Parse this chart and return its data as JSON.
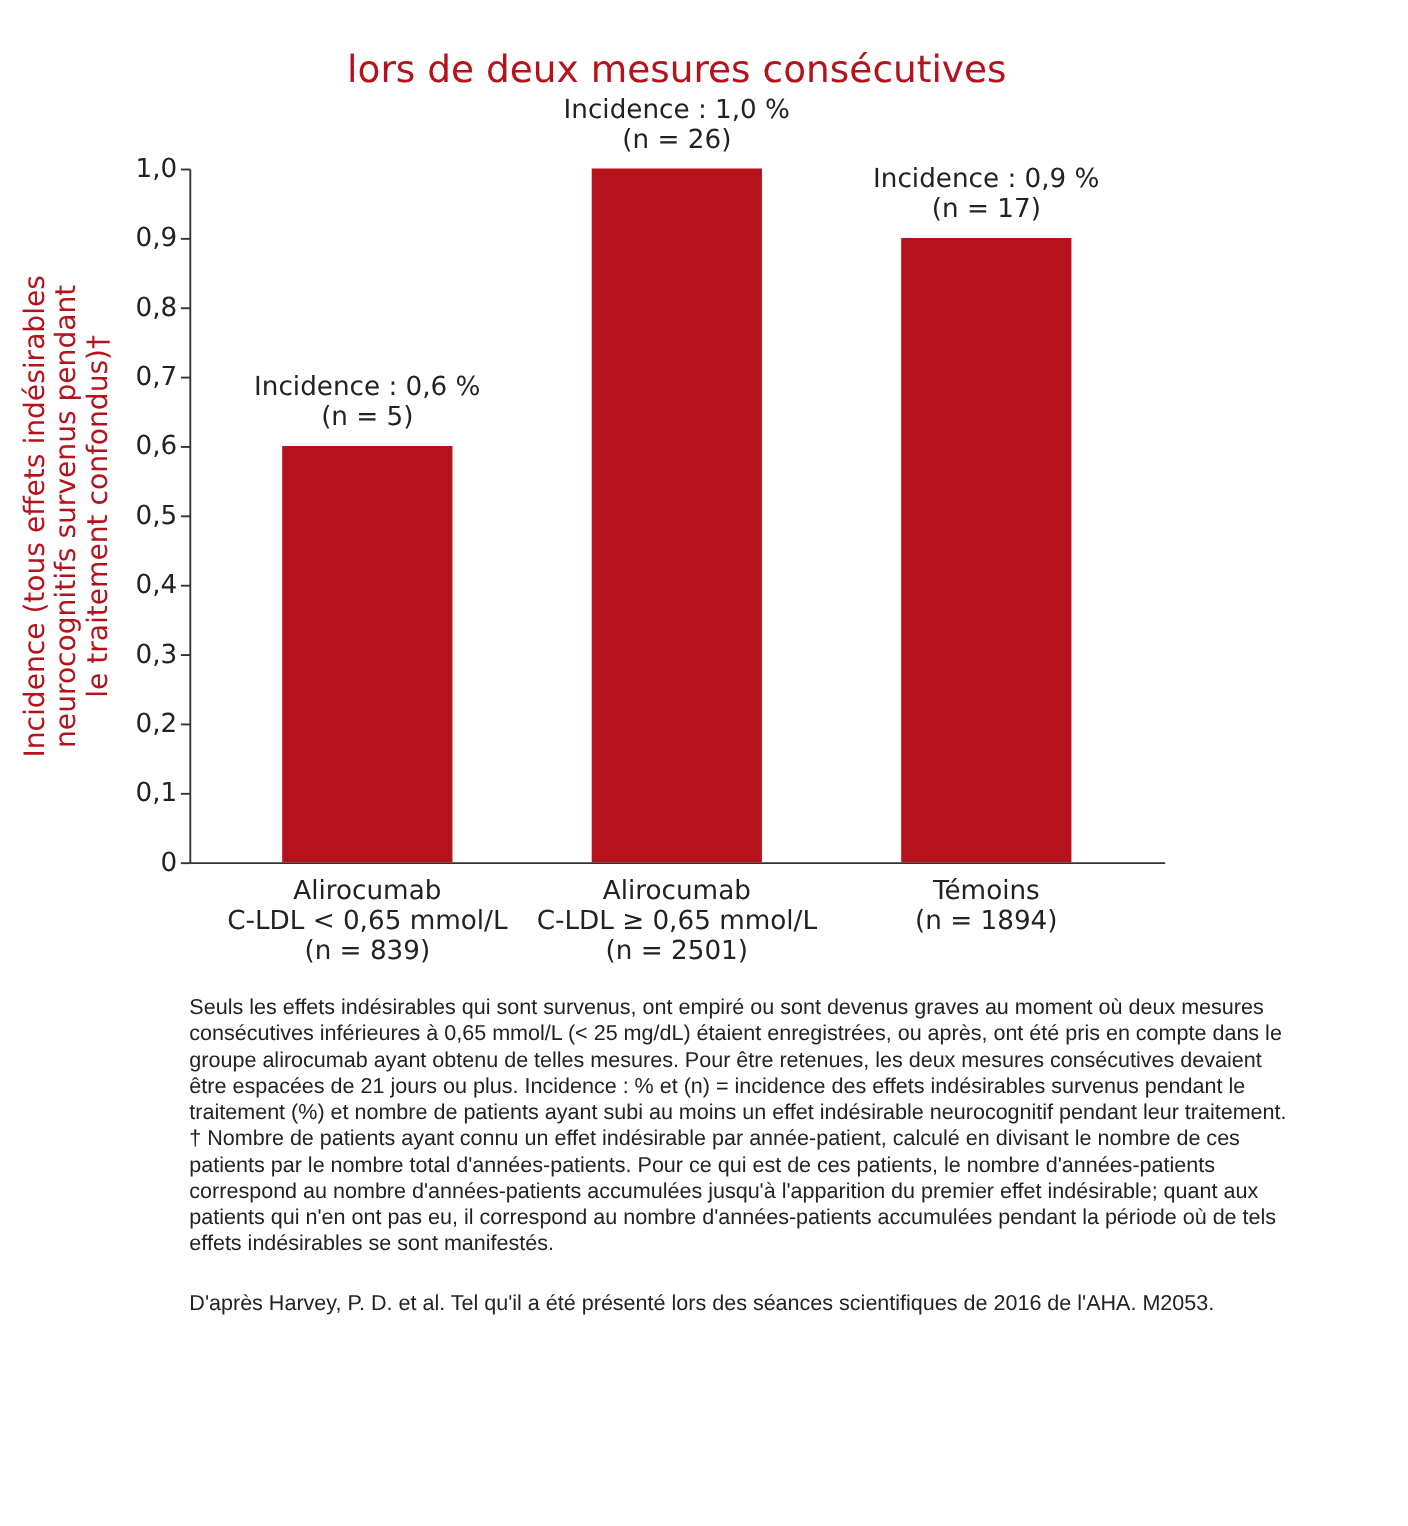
{
  "chart_data": {
    "type": "bar",
    "title": "lors de deux mesures consécutives",
    "ylabel": "Incidence (tous effets indésirables\nneurocognitifs survenus pendant\nle traitement confondus)†",
    "categories": [
      "Alirocumab\nC-LDL < 0,65 mmol/L\n(n = 839)",
      "Alirocumab\nC-LDL ≥ 0,65 mmol/L\n(n = 2501)",
      "Témoins\n(n = 1894)"
    ],
    "values": [
      0.6,
      1.0,
      0.9
    ],
    "color": "#b5121b",
    "value_labels": [
      "Incidence : 0,6 %\n(n = 5)",
      "Incidence : 1,0 %\n(n = 26)",
      "Incidence : 0,9 %\n(n = 17)"
    ],
    "ylim": [
      0,
      1.0
    ],
    "yticks": [
      0,
      {
        "value": 0.1,
        "label": "0,1"
      },
      {
        "value": 0.2,
        "label": "0,2"
      },
      {
        "value": 0.3,
        "label": "0,3"
      },
      {
        "value": 0.4,
        "label": "0,4"
      },
      {
        "value": 0.5,
        "label": "0,5"
      },
      {
        "value": 0.6,
        "label": "0,6"
      },
      {
        "value": 0.7,
        "label": "0,7"
      },
      {
        "value": 0.8,
        "label": "0,8"
      },
      {
        "value": 0.9,
        "label": "0,9"
      },
      {
        "value": 1.0,
        "label": "1,0"
      }
    ],
    "grid": false,
    "annotations": [
      "Seuls les effets indésirables qui sont survenus, ont empiré ou sont devenus graves au moment où deux mesures\nconsécutives inférieures à 0,65 mmol/L (< 25 mg/dL) étaient enregistrées, ou après, ont été pris en compte dans le\ngroupe alirocumab ayant obtenu de telles mesures. Pour être retenues, les deux mesures consécutives devaient\nêtre espacées de 21 jours ou plus. Incidence : % et (n) = incidence des effets indésirables survenus pendant le\ntraitement (%) et nombre de patients ayant subi au moins un effet indésirable neurocognitif pendant leur traitement.\n† Nombre de patients ayant connu un effet indésirable par année-patient, calculé en divisant le nombre de ces\npatients par le nombre total d'années-patients. Pour ce qui est de ces patients, le nombre d'années-patients\ncorrespond au nombre d'années-patients accumulées jusqu'à l'apparition du premier effet indésirable; quant aux\npatients qui n'en ont pas eu, il correspond au nombre d'années-patients accumulées pendant la période où de tels\neffets indésirables se sont manifestés.",
      "D'après Harvey, P. D. et al. Tel qu'il a été présenté lors des séances scientifiques de 2016 de l'AHA. M2053."
    ]
  }
}
